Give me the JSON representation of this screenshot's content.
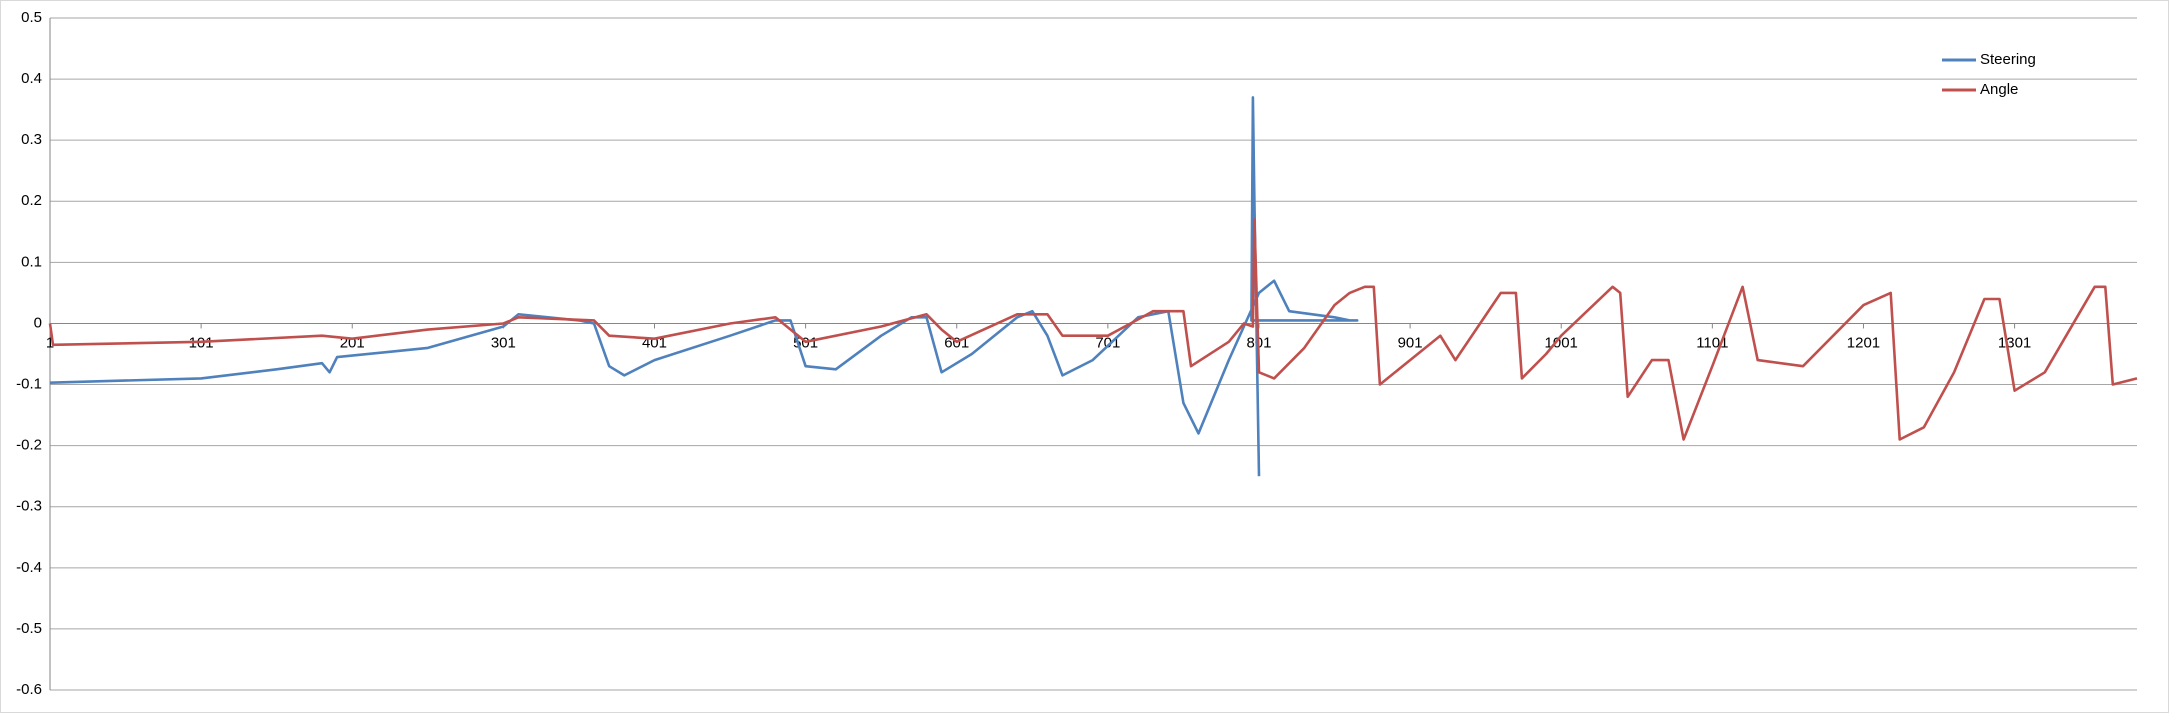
{
  "chart_data": {
    "type": "line",
    "xlim": [
      1,
      1382
    ],
    "xticks": [
      1,
      101,
      201,
      301,
      401,
      501,
      601,
      701,
      801,
      901,
      1001,
      1101,
      1201,
      1301
    ],
    "ylim": [
      -0.6,
      0.5
    ],
    "yticks": [
      -0.6,
      -0.5,
      -0.4,
      -0.3,
      -0.2,
      -0.1,
      0,
      0.1,
      0.2,
      0.3,
      0.4,
      0.5
    ],
    "grid": true,
    "legend": "top-right",
    "series": [
      {
        "name": "Steering",
        "color": "#4f81bd",
        "x": [
          1,
          101,
          151,
          181,
          186,
          191,
          251,
          301,
          311,
          351,
          361,
          371,
          381,
          401,
          451,
          481,
          491,
          501,
          521,
          551,
          571,
          581,
          591,
          611,
          641,
          651,
          661,
          671,
          691,
          721,
          741,
          751,
          761,
          781,
          801,
          811,
          821,
          851,
          861,
          866,
          796,
          797,
          798,
          801
        ],
        "values": [
          -0.097,
          -0.09,
          -0.075,
          -0.065,
          -0.08,
          -0.055,
          -0.04,
          -0.005,
          0.015,
          0.005,
          0,
          -0.07,
          -0.085,
          -0.06,
          -0.02,
          0.005,
          0.005,
          -0.07,
          -0.075,
          -0.02,
          0.01,
          0.01,
          -0.08,
          -0.05,
          0.01,
          0.02,
          -0.02,
          -0.085,
          -0.06,
          0.01,
          0.02,
          -0.13,
          -0.18,
          -0.06,
          0.05,
          0.07,
          0.02,
          0.01,
          0.005,
          0.005,
          0.005,
          0.37,
          0.2,
          -0.25
        ]
      },
      {
        "name": "Angle",
        "color": "#c0504d",
        "x": [
          1,
          3,
          101,
          181,
          201,
          251,
          301,
          311,
          361,
          371,
          401,
          451,
          481,
          501,
          551,
          581,
          591,
          601,
          641,
          661,
          671,
          701,
          731,
          751,
          756,
          781,
          791,
          797,
          798,
          801,
          811,
          831,
          851,
          861,
          871,
          877,
          881,
          901,
          921,
          931,
          961,
          971,
          975,
          991,
          1001,
          1035,
          1040,
          1045,
          1061,
          1072,
          1082,
          1101,
          1121,
          1131,
          1161,
          1201,
          1219,
          1225,
          1241,
          1261,
          1281,
          1291,
          1301,
          1321,
          1354,
          1361,
          1366,
          1382
        ],
        "values": [
          0,
          -0.035,
          -0.03,
          -0.02,
          -0.025,
          -0.01,
          0,
          0.01,
          0.005,
          -0.02,
          -0.025,
          0,
          0.01,
          -0.03,
          -0.005,
          0.015,
          -0.01,
          -0.03,
          0.015,
          0.015,
          -0.02,
          -0.02,
          0.02,
          0.02,
          -0.07,
          -0.03,
          0,
          -0.005,
          0.17,
          -0.08,
          -0.09,
          -0.04,
          0.03,
          0.05,
          0.06,
          0.06,
          -0.1,
          -0.06,
          -0.02,
          -0.06,
          0.05,
          0.05,
          -0.09,
          -0.05,
          -0.02,
          0.06,
          0.05,
          -0.12,
          -0.06,
          -0.06,
          -0.19,
          -0.07,
          0.06,
          -0.06,
          -0.07,
          0.03,
          0.05,
          -0.19,
          -0.17,
          -0.08,
          0.04,
          0.04,
          -0.11,
          -0.08,
          0.06,
          0.06,
          -0.1,
          -0.09
        ]
      }
    ]
  }
}
